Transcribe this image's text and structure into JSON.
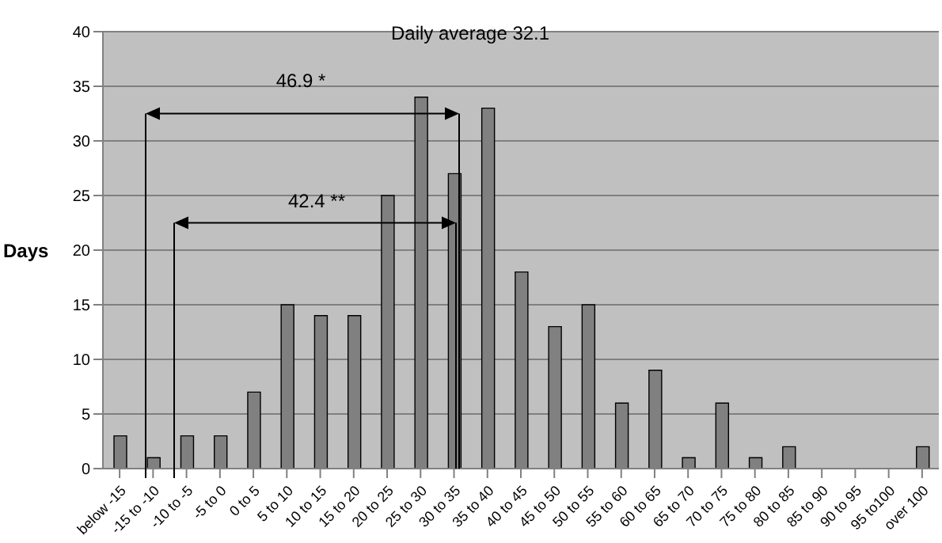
{
  "chart_data": {
    "type": "bar",
    "ylabel": "Days",
    "categories": [
      "below -15",
      "-15 to -10",
      "-10 to -5",
      "-5 to 0",
      "0 to 5",
      "5 to 10",
      "10 to 15",
      "15 to 20",
      "20 to 25",
      "25 to 30",
      "30 to 35",
      "35 to 40",
      "40 to 45",
      "45 to 50",
      "50 to 55",
      "55 to 60",
      "60 to 65",
      "65 to 70",
      "70 to 75",
      "75 to 80",
      "80 to 85",
      "85 to 90",
      "90 to 95",
      "95 to100",
      "over 100"
    ],
    "values": [
      3,
      1,
      3,
      3,
      7,
      15,
      14,
      14,
      25,
      34,
      27,
      33,
      18,
      13,
      15,
      6,
      9,
      1,
      6,
      1,
      2,
      0,
      0,
      0,
      2
    ],
    "color": "#808080",
    "ylim": [
      0,
      40
    ],
    "yticks": [
      0,
      5,
      10,
      15,
      20,
      25,
      30,
      35,
      40
    ],
    "grid": "y",
    "annotations": [
      "Daily average 32.1",
      "46.9 *",
      "42.4 **"
    ]
  }
}
